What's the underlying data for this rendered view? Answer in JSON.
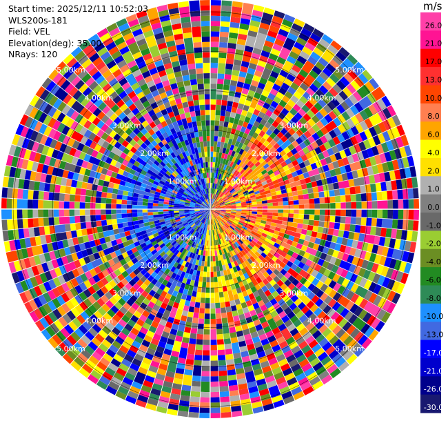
{
  "header": {
    "start_time": "Start time: 2025/12/11 10:52:03",
    "instrument": "WLS200s-181",
    "field": "Field: VEL",
    "elevation": "Elevation(deg): 35.00",
    "nrays": "NRays: 120"
  },
  "colorbar": {
    "unit": "m/s",
    "levels": [
      {
        "label": "26.0",
        "color": "#ff40a8"
      },
      {
        "label": "21.0",
        "color": "#ff1493"
      },
      {
        "label": "17.0",
        "color": "#ff0000"
      },
      {
        "label": "13.0",
        "color": "#ff3030"
      },
      {
        "label": "10.0",
        "color": "#ff4500"
      },
      {
        "label": "8.0",
        "color": "#ff7f50"
      },
      {
        "label": "6.0",
        "color": "#ffa500"
      },
      {
        "label": "4.0",
        "color": "#ffff00"
      },
      {
        "label": "2.0",
        "color": "#ffe000"
      },
      {
        "label": "1.0",
        "color": "#b0b0b0"
      },
      {
        "label": "0.0",
        "color": "#808080"
      },
      {
        "label": "-1.0",
        "color": "#696969"
      },
      {
        "label": "-2.0",
        "color": "#9acd32"
      },
      {
        "label": "-4.0",
        "color": "#6b8e23"
      },
      {
        "label": "-6.0",
        "color": "#228b22"
      },
      {
        "label": "-8.0",
        "color": "#2e8b57"
      },
      {
        "label": "-10.0",
        "color": "#1e90ff"
      },
      {
        "label": "-13.0",
        "color": "#4169e1"
      },
      {
        "label": "-17.0",
        "color": "#0000ff"
      },
      {
        "label": "-21.0",
        "color": "#0000cd"
      },
      {
        "label": "-26.0",
        "color": "#00008b"
      },
      {
        "label": "-30.0",
        "color": "#191970"
      }
    ]
  },
  "chart_data": {
    "type": "heatmap",
    "projection": "polar",
    "field": "VEL",
    "rays": 120,
    "gates": 40,
    "range_unit": "km",
    "range_rings": [
      "1.00km",
      "2.00km",
      "3.00km",
      "4.00km",
      "5.00km"
    ],
    "max_range_km": 5.3,
    "value_range": [
      -30.0,
      26.0
    ]
  }
}
